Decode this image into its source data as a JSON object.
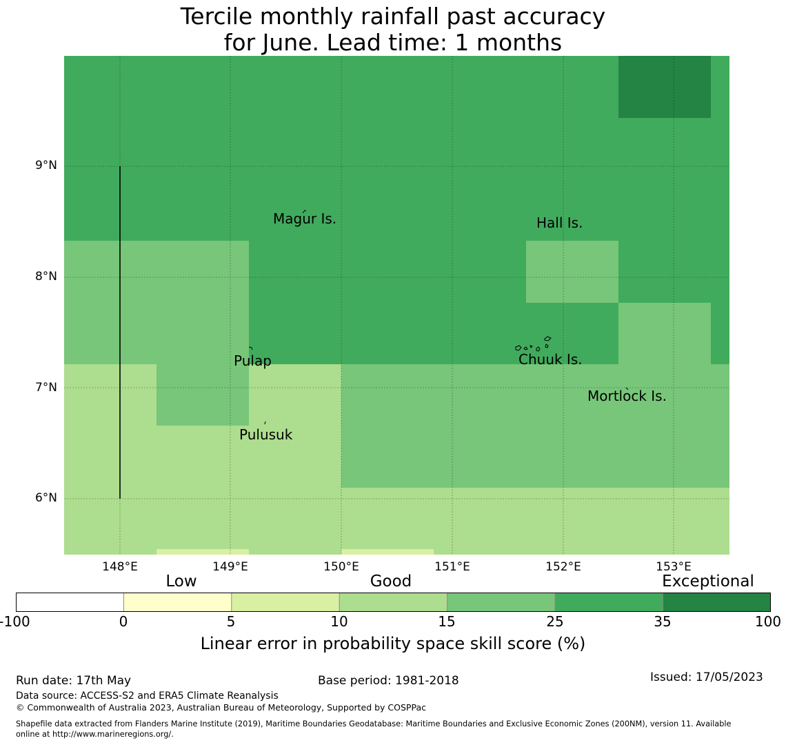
{
  "title_line1": "Tercile monthly rainfall past accuracy",
  "title_line2": "for June. Lead time: 1 months",
  "map": {
    "lon_range": [
      147.5,
      153.5
    ],
    "lat_range": [
      5.5,
      10.0
    ],
    "lat_ticks": [
      "9°N",
      "8°N",
      "7°N",
      "6°N"
    ],
    "lon_ticks": [
      "148°E",
      "149°E",
      "150°E",
      "151°E",
      "152°E",
      "153°E"
    ],
    "islands": [
      {
        "name": "Magur Is.",
        "lon": 149.7,
        "lat": 8.5
      },
      {
        "name": "Hall Is.",
        "lon": 151.9,
        "lat": 8.45
      },
      {
        "name": "Pulap",
        "lon": 149.2,
        "lat": 7.2
      },
      {
        "name": "Chuuk Is.",
        "lon": 151.8,
        "lat": 7.35
      },
      {
        "name": "Mortlock Is.",
        "lon": 152.6,
        "lat": 6.9
      },
      {
        "name": "Pulusuk",
        "lon": 149.3,
        "lat": 6.65
      }
    ]
  },
  "colorbar": {
    "categories": [
      "Low",
      "Good",
      "Exceptional"
    ],
    "ticks": [
      "-100",
      "0",
      "5",
      "10",
      "15",
      "25",
      "35",
      "100"
    ],
    "colors": [
      "#ffffff",
      "#ffffcc",
      "#d9f0a3",
      "#addd8e",
      "#78c679",
      "#41ab5d",
      "#238443"
    ],
    "label": "Linear error in probability space skill score (%)"
  },
  "footer": {
    "run_date": "Run date: 17th May",
    "base_period": "Base period: 1981-2018",
    "issued": "Issued: 17/05/2023",
    "data_source": "Data source: ACCESS-S2 and ERA5 Climate Reanalysis",
    "copyright": "© Commonwealth of Australia 2023, Australian Bureau of Meteorology, Supported by COSPPac",
    "shapefile_line1": "Shapefile data extracted from Flanders Marine Institute (2019), Maritime Boundaries Geodatabase: Maritime Boundaries and Exclusive Economic Zones (200NM), version 11. Available",
    "shapefile_line2": "online at http://www.marineregions.org/."
  }
}
